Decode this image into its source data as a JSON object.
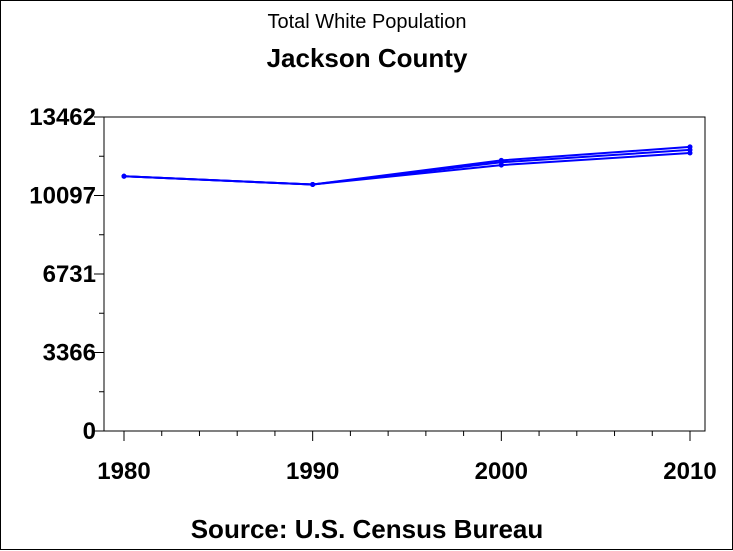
{
  "chart_data": {
    "type": "line",
    "title": "Total White Population",
    "subtitle": "Jackson County",
    "footnote": "Source: U.S. Census Bureau",
    "x": [
      1980,
      1990,
      2000,
      2010
    ],
    "x_tick_labels": [
      "1980",
      "1990",
      "2000",
      "2010"
    ],
    "ylim": [
      0,
      13462
    ],
    "y_tick_values": [
      0,
      3366,
      6731,
      10097,
      13462
    ],
    "y_tick_labels": [
      "0",
      "3366",
      "6731",
      "10097",
      "13462"
    ],
    "series": [
      {
        "values": [
          10920,
          10570,
          11400,
          11920
        ]
      },
      {
        "values": [
          10920,
          10570,
          11600,
          12180
        ]
      },
      {
        "values": [
          10920,
          10570,
          11520,
          12050
        ]
      }
    ],
    "line_color": "#0000ff",
    "grid": false
  }
}
